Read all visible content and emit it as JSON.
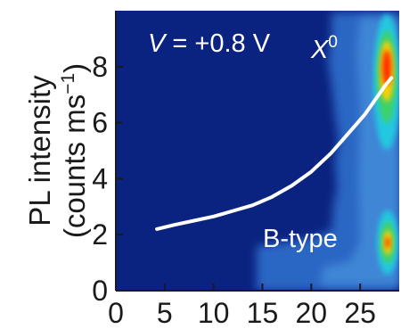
{
  "chart_data": {
    "type": "heatmap",
    "xlim": [
      0,
      29
    ],
    "ylim": [
      0,
      10
    ],
    "x_ticks": [
      "0",
      "5",
      "10",
      "15",
      "20",
      "25"
    ],
    "y_ticks": [
      "0",
      "2",
      "4",
      "6",
      "8"
    ],
    "ylabel_line1": "PL intensity",
    "ylabel_line2_main": "(counts ms",
    "ylabel_line2_sup": "−1",
    "ylabel_line2_end": ")",
    "annotations": {
      "voltage_var": "V",
      "voltage_value": " = +0.8 V",
      "peak_main": "X",
      "peak_sup": "0",
      "lower_label": "B-type"
    },
    "curve": {
      "x": [
        4.2,
        6,
        8,
        10,
        12,
        14,
        16,
        18,
        20,
        22,
        24,
        25.5,
        26.5,
        27.5,
        28.2
      ],
      "y": [
        2.2,
        2.35,
        2.5,
        2.65,
        2.85,
        3.05,
        3.35,
        3.75,
        4.25,
        4.9,
        5.7,
        6.3,
        6.8,
        7.3,
        7.6
      ]
    },
    "colors": {
      "background": "#0b2380",
      "region": "#2c66c4",
      "region_light": "#3f86d6",
      "curve": "#ffffff",
      "hot": "#ff2a00",
      "warm": "#ffd000",
      "mid": "#3cd16a",
      "cool": "#22c8e0"
    }
  }
}
